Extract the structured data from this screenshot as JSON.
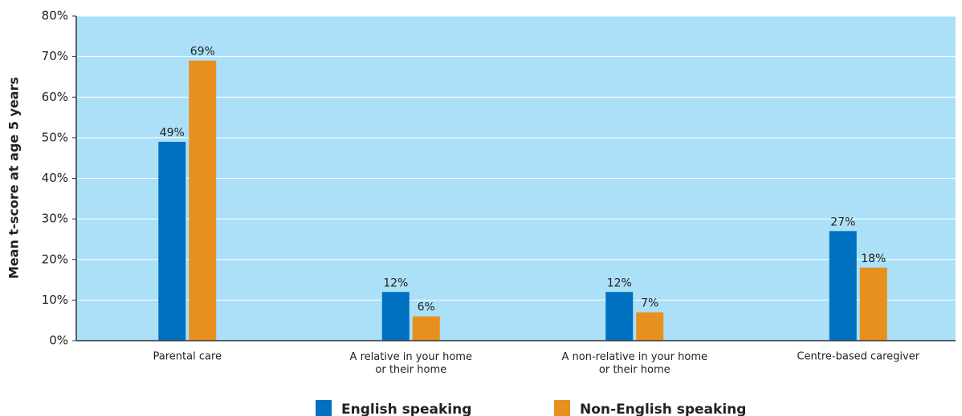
{
  "chart_data": {
    "type": "bar",
    "y_axis_label": "Mean t-score at age 5 years",
    "categories": [
      "Parental care",
      "A relative in your home\nor their home",
      "A non-relative in your home\nor their home",
      "Centre-based caregiver"
    ],
    "series": [
      {
        "name": "English speaking",
        "color": "#0070c0",
        "values": [
          49,
          12,
          12,
          27
        ],
        "value_labels": [
          "49%",
          "12%",
          "12%",
          "27%"
        ]
      },
      {
        "name": "Non-English speaking",
        "color": "#e8901e",
        "values": [
          69,
          6,
          7,
          18
        ],
        "value_labels": [
          "69%",
          "6%",
          "7%",
          "18%"
        ]
      }
    ],
    "ylim": [
      0,
      80
    ],
    "yticks": [
      {
        "value": 0,
        "label": "0%"
      },
      {
        "value": 10,
        "label": "10%"
      },
      {
        "value": 20,
        "label": "20%"
      },
      {
        "value": 30,
        "label": "30%"
      },
      {
        "value": 40,
        "label": "40%"
      },
      {
        "value": 50,
        "label": "50%"
      },
      {
        "value": 60,
        "label": "60%"
      },
      {
        "value": 70,
        "label": "70%"
      },
      {
        "value": 80,
        "label": "80%"
      }
    ],
    "grid": true,
    "legend": "bottom",
    "background": "#abe0f8"
  }
}
